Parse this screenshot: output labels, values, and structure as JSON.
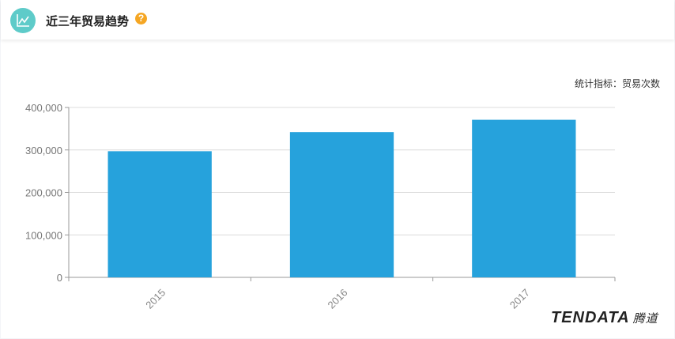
{
  "header": {
    "title": "近三年贸易趋势",
    "help_icon": "question-circle-icon",
    "icon": "line-chart-icon"
  },
  "metric_label": "统计指标：贸易次数",
  "logo": {
    "text": "TENDATA",
    "cn": "腾道"
  },
  "chart_data": {
    "type": "bar",
    "categories": [
      "2015",
      "2016",
      "2017"
    ],
    "values": [
      297000,
      342000,
      371000
    ],
    "yticks": [
      "0",
      "100,000",
      "200,000",
      "300,000",
      "400,000"
    ],
    "ylim": [
      0,
      400000
    ],
    "grid": true,
    "color": "#26a2dc"
  }
}
